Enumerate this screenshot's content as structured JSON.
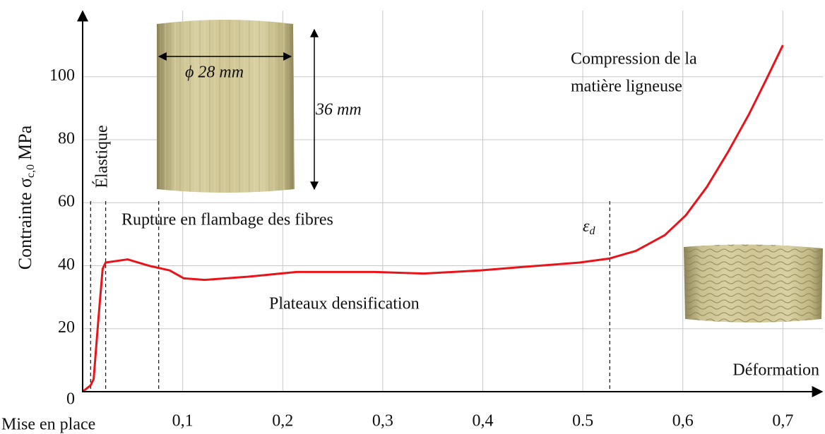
{
  "chart_data": {
    "type": "line",
    "y_label": {
      "main": "Contrainte σ",
      "sub": "c,0",
      "unit": "MPa"
    },
    "x_label": "Déformation",
    "x": [
      0,
      0.008,
      0.011,
      0.016,
      0.02,
      0.023,
      0.045,
      0.066,
      0.087,
      0.101,
      0.122,
      0.165,
      0.214,
      0.292,
      0.341,
      0.398,
      0.44,
      0.497,
      0.527,
      0.553,
      0.582,
      0.603,
      0.624,
      0.645,
      0.666,
      0.684,
      0.7
    ],
    "series": [
      {
        "color": "#e8141a",
        "values": [
          0,
          2,
          4,
          24,
          39,
          41,
          42,
          40,
          38.5,
          36,
          35.5,
          36.5,
          38,
          38,
          37.5,
          38.5,
          39.6,
          41,
          42.3,
          44.7,
          49.7,
          56,
          65,
          76,
          88,
          99.5,
          110
        ]
      }
    ],
    "xlim": [
      0,
      0.74
    ],
    "ylim": [
      0,
      121
    ],
    "xticks": [
      {
        "value": 0.1,
        "label": "0,1"
      },
      {
        "value": 0.2,
        "label": "0,2"
      },
      {
        "value": 0.3,
        "label": "0,3"
      },
      {
        "value": 0.4,
        "label": "0,4"
      },
      {
        "value": 0.5,
        "label": "0.5"
      },
      {
        "value": 0.6,
        "label": "0,6"
      },
      {
        "value": 0.7,
        "label": "0,7"
      }
    ],
    "yticks": [
      0,
      20,
      40,
      60,
      80,
      100
    ],
    "grid": true,
    "vlines": [
      0.008,
      0.023,
      0.076,
      0.527
    ],
    "annotations": [
      "Mise en place",
      "Élastique",
      "Rupture en flambage des fibres",
      "Plateaux densification",
      "Compression de la",
      "matière ligneuse"
    ],
    "strain_symbol": {
      "main": "ε",
      "sub": "d"
    },
    "sample_labels": [
      "ϕ 28 mm",
      "36 mm"
    ]
  }
}
